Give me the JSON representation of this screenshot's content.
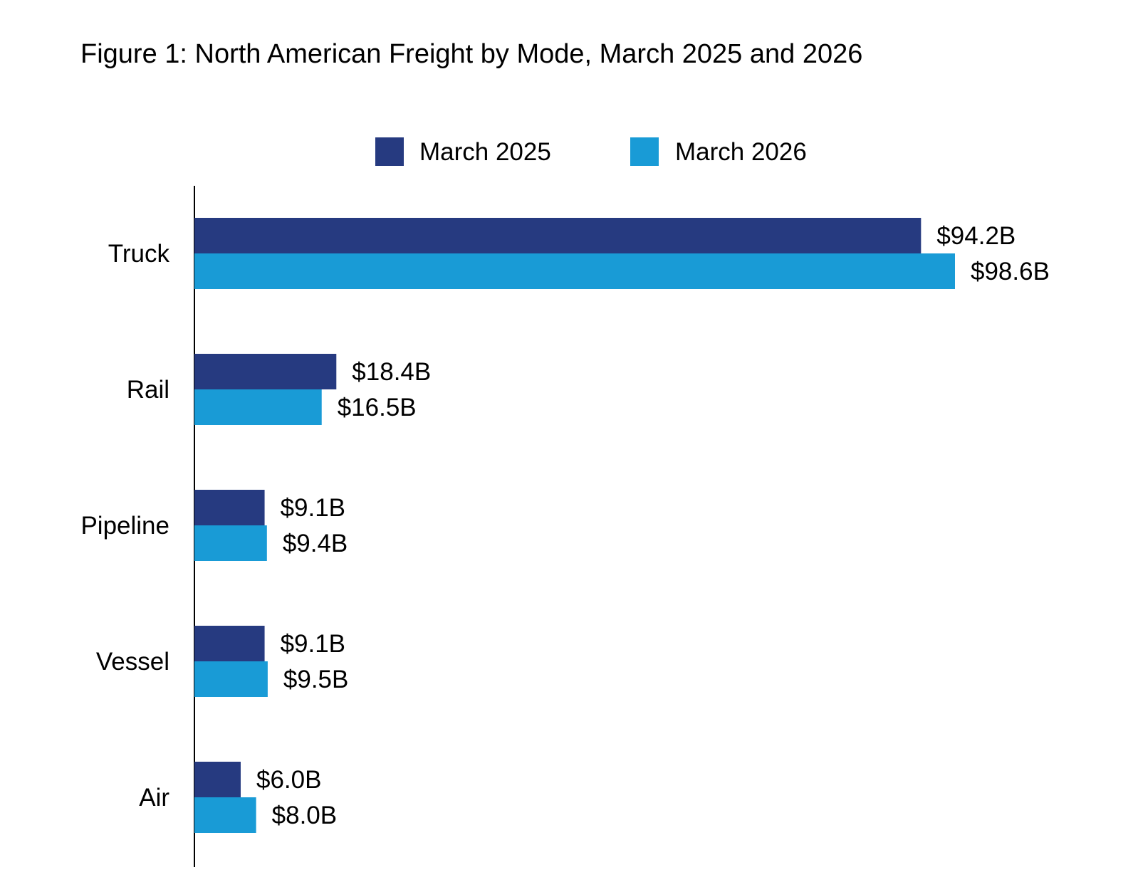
{
  "chart_data": {
    "type": "bar",
    "orientation": "horizontal",
    "title": "Figure 1: North American Freight by Mode, March 2025 and 2026",
    "xlabel": "",
    "ylabel": "",
    "categories": [
      "Truck",
      "Rail",
      "Pipeline",
      "Vessel",
      "Air"
    ],
    "series": [
      {
        "name": "March 2025",
        "color": "#263a80",
        "values": [
          94.2,
          18.4,
          9.1,
          9.1,
          6.0
        ],
        "labels": [
          "$94.2B",
          "$18.4B",
          "$9.1B",
          "$9.1B",
          "$6.0B"
        ]
      },
      {
        "name": "March 2026",
        "color": "#199bd6",
        "values": [
          98.6,
          16.5,
          9.4,
          9.5,
          8.0
        ],
        "labels": [
          "$98.6B",
          "$16.5B",
          "$9.4B",
          "$9.5B",
          "$8.0B"
        ]
      }
    ],
    "xlim": [
      0,
      100
    ],
    "grid": false,
    "legend": "top"
  }
}
